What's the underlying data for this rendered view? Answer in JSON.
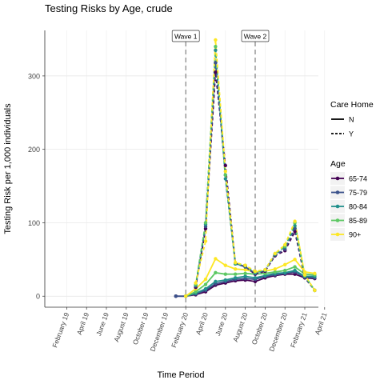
{
  "chart_data": {
    "type": "line",
    "title": "Testing Risks by Age, crude",
    "xlabel": "Time Period",
    "ylabel": "Testing Risk per 1,000 individuals",
    "ylim": [
      -15,
      362
    ],
    "y_ticks": [
      0,
      100,
      200,
      300
    ],
    "x_tick_labels": [
      "February 19",
      "April 19",
      "June 19",
      "August 19",
      "October 19",
      "December 19",
      "February 20",
      "April 20",
      "June 20",
      "August 20",
      "October 20",
      "December 20",
      "February 21",
      "April 21"
    ],
    "x": [
      "2020-01",
      "2020-02",
      "2020-03",
      "2020-04",
      "2020-05",
      "2020-06",
      "2020-07",
      "2020-08",
      "2020-09",
      "2020-10",
      "2020-11",
      "2020-12",
      "2021-01",
      "2021-02",
      "2021-03"
    ],
    "annotations": [
      {
        "label": "Wave 1",
        "x": "2020-02"
      },
      {
        "label": "Wave 2",
        "x": "2020-09"
      }
    ],
    "grid": true,
    "legend_placement": "right",
    "legends": [
      {
        "title": "Care Home",
        "entries": [
          {
            "label": "N",
            "dash": "solid"
          },
          {
            "label": "Y",
            "dash": "dashed"
          }
        ]
      },
      {
        "title": "Age",
        "entries": [
          "65-74",
          "75-79",
          "80-84",
          "85-89",
          "90+"
        ]
      }
    ],
    "series": [
      {
        "age": "65-74",
        "care_home": "N",
        "color": "#440154",
        "values": [
          0,
          0,
          2,
          6,
          15,
          18,
          21,
          22,
          20,
          25,
          28,
          30,
          30,
          25,
          24
        ]
      },
      {
        "age": "75-79",
        "care_home": "N",
        "color": "#3B528B",
        "values": [
          0,
          0,
          3,
          8,
          17,
          20,
          23,
          24,
          23,
          27,
          29,
          31,
          33,
          26,
          25
        ]
      },
      {
        "age": "80-84",
        "care_home": "N",
        "color": "#21908C",
        "values": [
          null,
          0,
          4,
          10,
          20,
          22,
          25,
          27,
          25,
          28,
          31,
          32,
          35,
          27,
          27
        ]
      },
      {
        "age": "85-89",
        "care_home": "N",
        "color": "#5DC863",
        "values": [
          null,
          0,
          6,
          16,
          32,
          30,
          30,
          31,
          30,
          31,
          33,
          35,
          40,
          30,
          29
        ]
      },
      {
        "age": "90+",
        "care_home": "N",
        "color": "#FDE725",
        "values": [
          null,
          0,
          10,
          23,
          51,
          42,
          37,
          36,
          33,
          34,
          37,
          43,
          50,
          33,
          31
        ]
      },
      {
        "age": "65-74",
        "care_home": "Y",
        "color": "#440154",
        "values": [
          null,
          null,
          12,
          92,
          305,
          178,
          45,
          40,
          30,
          34,
          55,
          62,
          88,
          25,
          8
        ]
      },
      {
        "age": "75-79",
        "care_home": "Y",
        "color": "#3B528B",
        "values": [
          null,
          null,
          14,
          95,
          318,
          165,
          44,
          40,
          31,
          35,
          56,
          64,
          92,
          26,
          8
        ]
      },
      {
        "age": "80-84",
        "care_home": "Y",
        "color": "#21908C",
        "values": [
          null,
          null,
          15,
          98,
          335,
          160,
          44,
          41,
          32,
          35,
          57,
          67,
          96,
          27,
          8
        ]
      },
      {
        "age": "85-89",
        "care_home": "Y",
        "color": "#5DC863",
        "values": [
          null,
          null,
          16,
          100,
          340,
          165,
          45,
          42,
          33,
          36,
          58,
          68,
          100,
          28,
          8
        ]
      },
      {
        "age": "90+",
        "care_home": "Y",
        "color": "#FDE725",
        "values": [
          null,
          null,
          18,
          75,
          349,
          170,
          46,
          42,
          34,
          36,
          58,
          70,
          102,
          29,
          8
        ]
      }
    ]
  }
}
